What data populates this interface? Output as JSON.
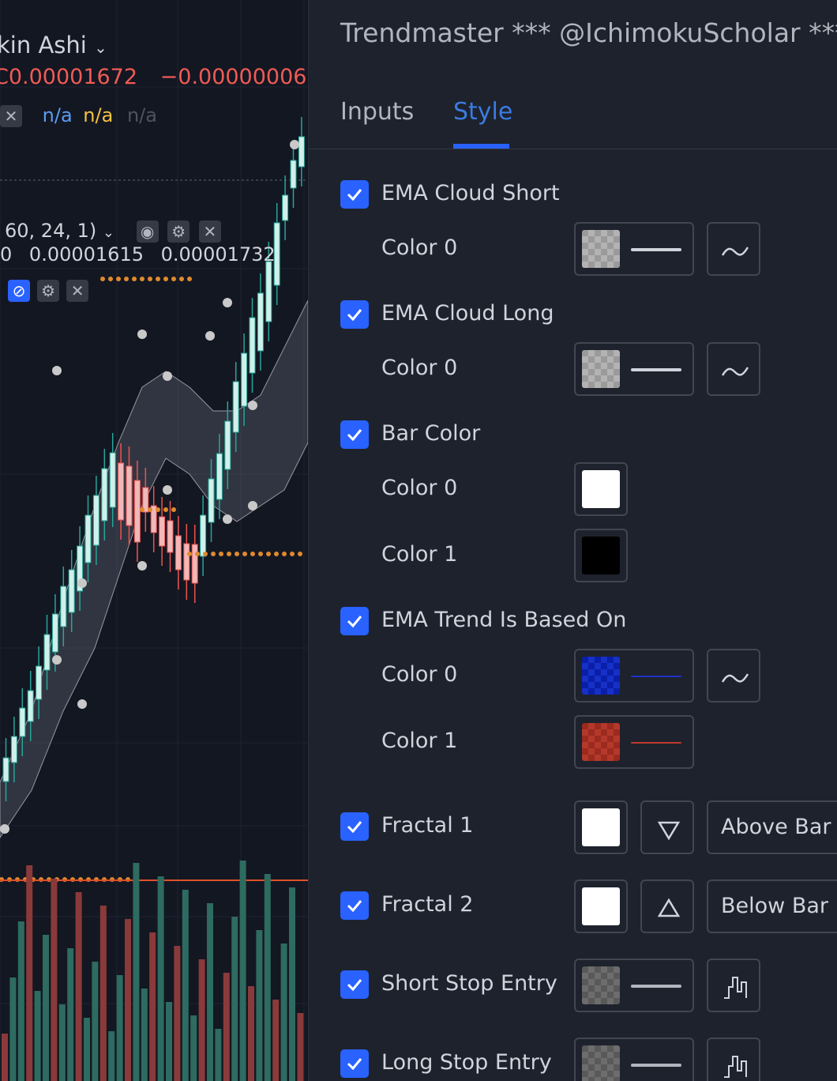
{
  "chart": {
    "series_name": "kin Ashi",
    "price_value": "C0.00001672",
    "price_change": "−0.00000006 (",
    "indicator_values": [
      "n/a",
      "n/a",
      "n/a"
    ],
    "indicator_params": "60, 24, 1)",
    "indicator_nums": [
      "0",
      "0.00001615",
      "0.00001732"
    ],
    "colors": {
      "up": "#d0f0ea",
      "down": "#f0b8b8",
      "volume_up": "#26a69a",
      "volume_down": "#ef5350",
      "dots": "#e08a2e",
      "background": "#131722"
    }
  },
  "dialog": {
    "title": "Trendmaster *** @IchimokuScholar ***",
    "tabs": {
      "inputs": "Inputs",
      "style": "Style"
    },
    "sections": {
      "ema_cloud_short": {
        "label": "EMA Cloud Short",
        "color0": "Color 0"
      },
      "ema_cloud_long": {
        "label": "EMA Cloud Long",
        "color0": "Color 0"
      },
      "bar_color": {
        "label": "Bar Color",
        "color0": "Color 0",
        "color1": "Color 1"
      },
      "ema_trend": {
        "label": "EMA Trend Is Based On",
        "color0": "Color 0",
        "color1": "Color 1"
      },
      "fractal1": {
        "label": "Fractal 1",
        "location": "Above Bar"
      },
      "fractal2": {
        "label": "Fractal 2",
        "location": "Below Bar"
      },
      "short_stop": {
        "label": "Short Stop Entry"
      },
      "long_stop": {
        "label": "Long Stop Entry"
      }
    },
    "colors": {
      "accent": "#2962ff",
      "blue_line": "#1f33c8",
      "red_line": "#c0392b"
    }
  }
}
